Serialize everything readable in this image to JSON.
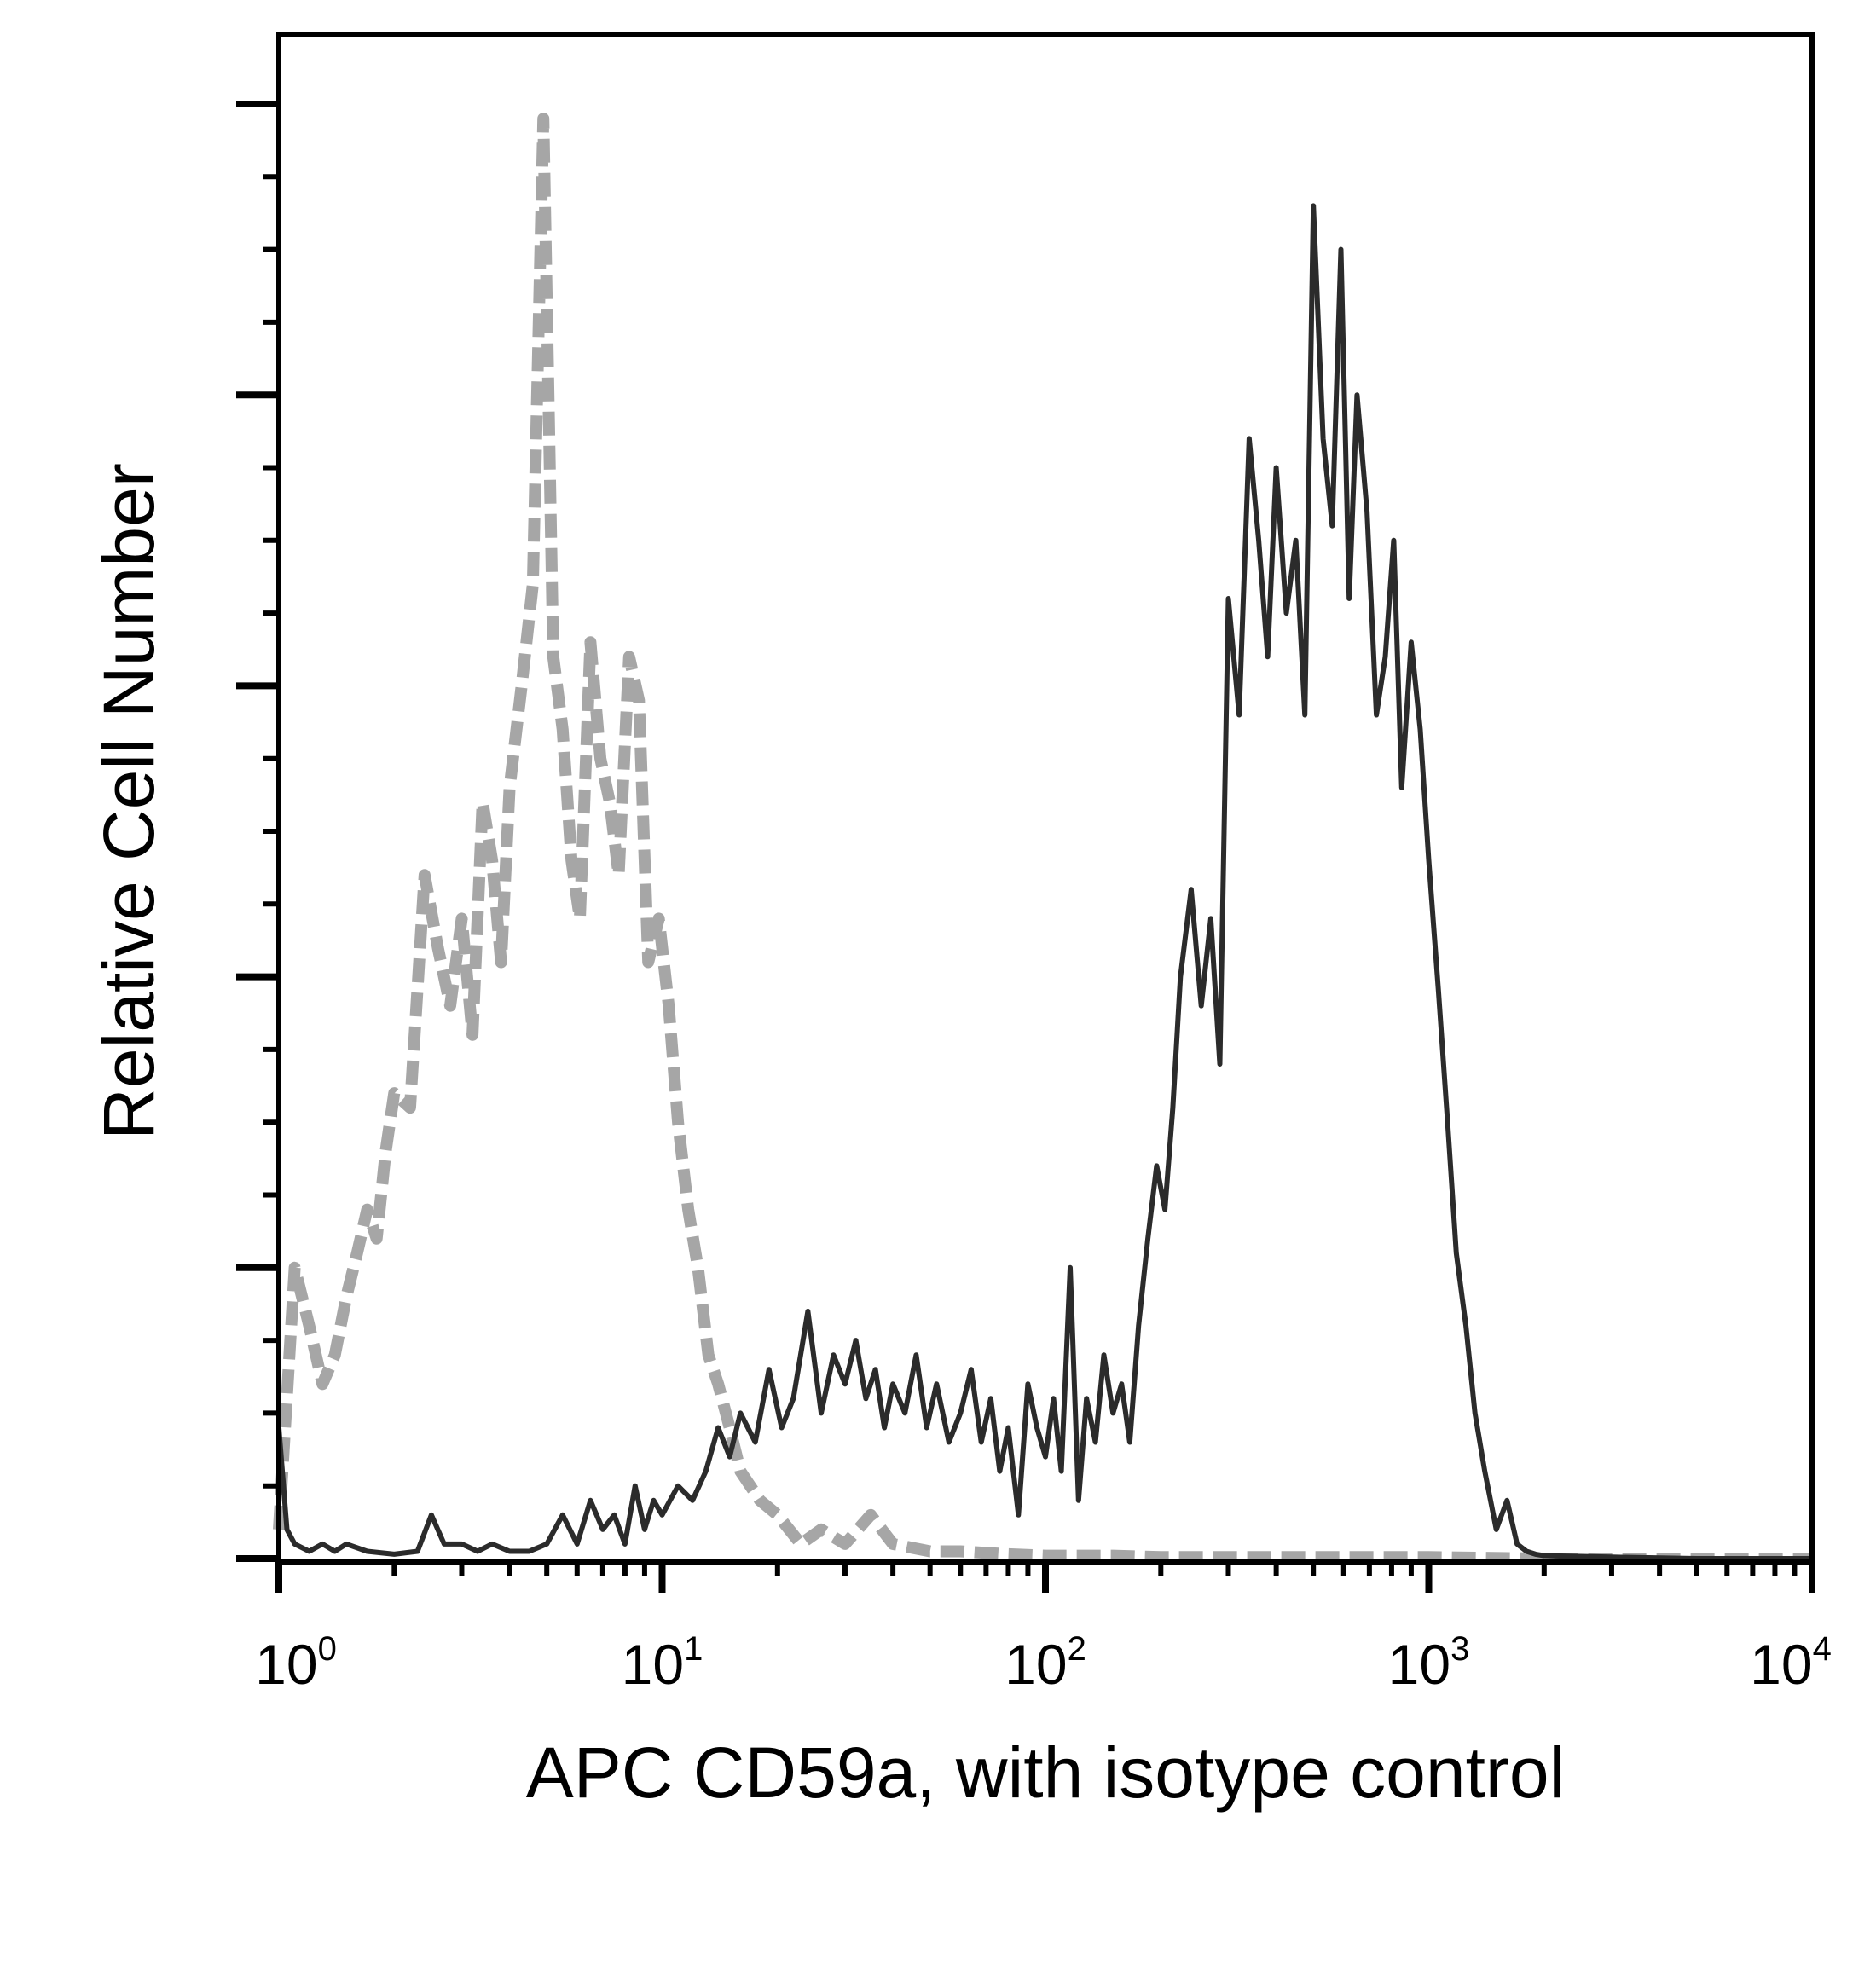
{
  "chart_data": {
    "type": "line",
    "xlabel": "APC CD59a, with isotype control",
    "ylabel": "Relative Cell Number",
    "x_scale": "log",
    "xlim": [
      1,
      10000
    ],
    "ylim": [
      0,
      100
    ],
    "x_ticks": [
      {
        "value": 1,
        "base": "10",
        "exp": "0"
      },
      {
        "value": 10,
        "base": "10",
        "exp": "1"
      },
      {
        "value": 100,
        "base": "10",
        "exp": "2"
      },
      {
        "value": 1000,
        "base": "10",
        "exp": "3"
      },
      {
        "value": 10000,
        "base": "10",
        "exp": "4"
      }
    ],
    "grid": false,
    "legend": "none",
    "series": [
      {
        "style": "dashed",
        "color": "#a6a6a6",
        "x": [
          1.0,
          1.1,
          1.2,
          1.3,
          1.4,
          1.5,
          1.6,
          1.7,
          1.8,
          1.9,
          2.0,
          2.2,
          2.4,
          2.6,
          2.8,
          3.0,
          3.2,
          3.4,
          3.6,
          3.8,
          4.0,
          4.3,
          4.6,
          4.9,
          5.2,
          5.5,
          5.8,
          6.1,
          6.5,
          6.9,
          7.3,
          7.7,
          8.2,
          8.7,
          9.2,
          9.8,
          10.4,
          11.0,
          11.7,
          12.4,
          13.2,
          14.0,
          15.0,
          16.0,
          18.0,
          20.0,
          23.0,
          26.0,
          30.0,
          35.0,
          40.0,
          50.0,
          60.0,
          80.0,
          100.0,
          150.0,
          200.0,
          300.0,
          500.0,
          1000.0,
          2000.0,
          5000.0,
          10000.0
        ],
        "values": [
          2,
          20,
          16,
          12,
          14,
          18,
          21,
          24,
          22,
          28,
          32,
          31,
          47,
          42,
          38,
          44,
          36,
          52,
          48,
          41,
          53,
          60,
          67,
          99,
          62,
          57,
          48,
          44,
          63,
          55,
          52,
          47,
          62,
          59,
          41,
          44,
          38,
          30,
          24,
          20,
          14,
          12,
          9,
          6,
          4,
          3,
          1,
          2,
          1,
          3,
          1,
          0.5,
          0.5,
          0.3,
          0.2,
          0.2,
          0.1,
          0.1,
          0.1,
          0.1,
          0,
          0,
          0
        ]
      },
      {
        "style": "solid",
        "color": "#2b2b2b",
        "x": [
          1.0,
          1.05,
          1.1,
          1.2,
          1.3,
          1.4,
          1.5,
          1.7,
          2.0,
          2.3,
          2.5,
          2.7,
          3.0,
          3.3,
          3.6,
          4.0,
          4.5,
          5.0,
          5.5,
          6.0,
          6.5,
          7.0,
          7.5,
          8.0,
          8.5,
          9.0,
          9.5,
          10.0,
          11.0,
          12.0,
          13.0,
          14.0,
          15.0,
          16.0,
          17.5,
          19.0,
          20.5,
          22.0,
          24.0,
          26.0,
          28.0,
          30.0,
          32.0,
          34.0,
          36.0,
          38.0,
          40.0,
          43.0,
          46.0,
          49.0,
          52.0,
          56.0,
          60.0,
          64.0,
          68.0,
          72.0,
          76.0,
          80.0,
          85.0,
          90.0,
          95.0,
          100.0,
          105.0,
          110.0,
          116.0,
          122.0,
          128.0,
          135.0,
          142.0,
          150.0,
          158.0,
          166.0,
          175.0,
          185.0,
          195.0,
          205.0,
          215.0,
          225.0,
          240.0,
          255.0,
          270.0,
          285.0,
          300.0,
          320.0,
          340.0,
          360.0,
          380.0,
          400.0,
          425.0,
          450.0,
          475.0,
          500.0,
          530.0,
          560.0,
          590.0,
          620.0,
          650.0,
          690.0,
          730.0,
          770.0,
          810.0,
          850.0,
          900.0,
          950.0,
          1000.0,
          1060.0,
          1120.0,
          1180.0,
          1250.0,
          1320.0,
          1400.0,
          1500.0,
          1600.0,
          1700.0,
          1800.0,
          1900.0,
          2000.0,
          3000.0,
          5000.0,
          10000.0
        ],
        "values": [
          9,
          2,
          1,
          0.5,
          1,
          0.5,
          1,
          0.5,
          0.3,
          0.5,
          3,
          1,
          1,
          0.5,
          1,
          0.5,
          0.5,
          1,
          3,
          1,
          4,
          2,
          3,
          1,
          5,
          2,
          4,
          3,
          5,
          4,
          6,
          9,
          7,
          10,
          8,
          13,
          9,
          11,
          17,
          10,
          14,
          12,
          15,
          11,
          13,
          9,
          12,
          10,
          14,
          9,
          12,
          8,
          10,
          13,
          8,
          11,
          6,
          9,
          3,
          12,
          9,
          7,
          11,
          6,
          20,
          4,
          11,
          8,
          14,
          10,
          12,
          8,
          16,
          22,
          27,
          24,
          31,
          40,
          46,
          38,
          44,
          34,
          66,
          58,
          77,
          70,
          62,
          75,
          65,
          70,
          58,
          93,
          77,
          71,
          90,
          66,
          80,
          72,
          58,
          62,
          70,
          53,
          63,
          57,
          48,
          39,
          30,
          21,
          16,
          10,
          6,
          2,
          4,
          1,
          0.5,
          0.3,
          0.2,
          0.1,
          0,
          0
        ]
      }
    ]
  }
}
